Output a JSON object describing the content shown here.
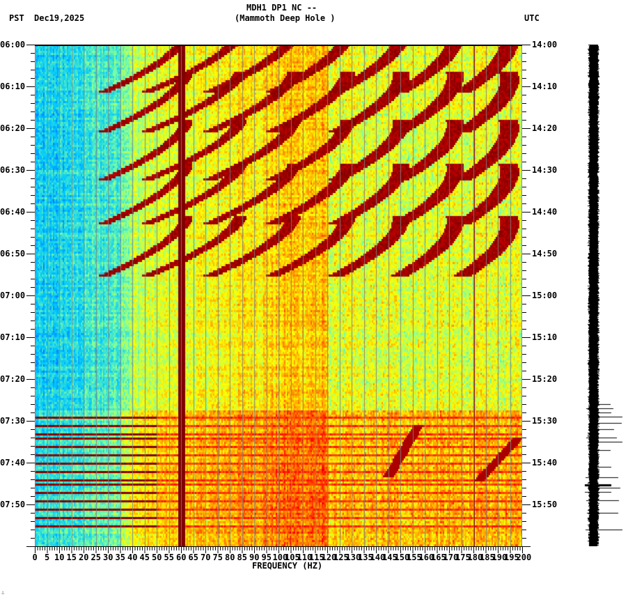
{
  "header": {
    "station_line": "MDH1 DP1 NC --",
    "location_line": "(Mammoth Deep Hole )",
    "left_timezone": "PST",
    "date": "Dec19,2025",
    "right_timezone": "UTC"
  },
  "footer": {
    "corner_mark": "∴"
  },
  "chart_data": {
    "type": "heatmap",
    "title": "MDH1 DP1 NC -- (Mammoth Deep Hole )",
    "subtitle": "Dec19,2025",
    "xlabel": "FREQUENCY (HZ)",
    "ylabel_left": "PST",
    "ylabel_right": "UTC",
    "xlim": [
      0,
      200
    ],
    "x_ticks": [
      "0",
      "5",
      "10",
      "15",
      "20",
      "25",
      "30",
      "35",
      "40",
      "45",
      "50",
      "55",
      "60",
      "65",
      "70",
      "75",
      "80",
      "85",
      "90",
      "95",
      "100",
      "105",
      "110",
      "115",
      "120",
      "125",
      "130",
      "135",
      "140",
      "145",
      "150",
      "155",
      "160",
      "165",
      "170",
      "175",
      "180",
      "185",
      "190",
      "195",
      "200"
    ],
    "y_ticks_left": [
      "06:00",
      "06:10",
      "06:20",
      "06:30",
      "06:40",
      "06:50",
      "07:00",
      "07:10",
      "07:20",
      "07:30",
      "07:40",
      "07:50"
    ],
    "y_ticks_right": [
      "14:00",
      "14:10",
      "14:20",
      "14:30",
      "14:40",
      "14:50",
      "15:00",
      "15:10",
      "15:20",
      "15:30",
      "15:40",
      "15:50"
    ],
    "time_range_minutes": 120,
    "grid": "vertical every 5 Hz",
    "colormap": [
      "#0050ff",
      "#00c8ff",
      "#7fffa0",
      "#ffff00",
      "#ff8000",
      "#ff0000",
      "#800000"
    ],
    "persistent_lines_hz": [
      60,
      180
    ],
    "chirp_episodes_start_min": [
      -3,
      6.5,
      18,
      28.5,
      41
    ],
    "chirp_harmonic_offsets_hz": [
      0,
      22,
      44,
      66,
      88,
      110,
      132
    ],
    "quiet_background_below_hz": 35,
    "transition_to_broadband_noise_min": 87,
    "broadband_rows_min": [
      89,
      91,
      93,
      94,
      96,
      98,
      100,
      102,
      104,
      105,
      107,
      109,
      111,
      113,
      115
    ],
    "diagonal_events": [
      {
        "start_min": 91,
        "end_min": 103,
        "f_start_hz": 145,
        "f_end_hz": 157
      },
      {
        "start_min": 94,
        "end_min": 104,
        "f_start_hz": 182,
        "f_end_hz": 198
      }
    ],
    "waveform_spikes_min": [
      86,
      87,
      88,
      89,
      90.5,
      92,
      94,
      95,
      97,
      101,
      103.5,
      106,
      107,
      109,
      112,
      116
    ]
  }
}
